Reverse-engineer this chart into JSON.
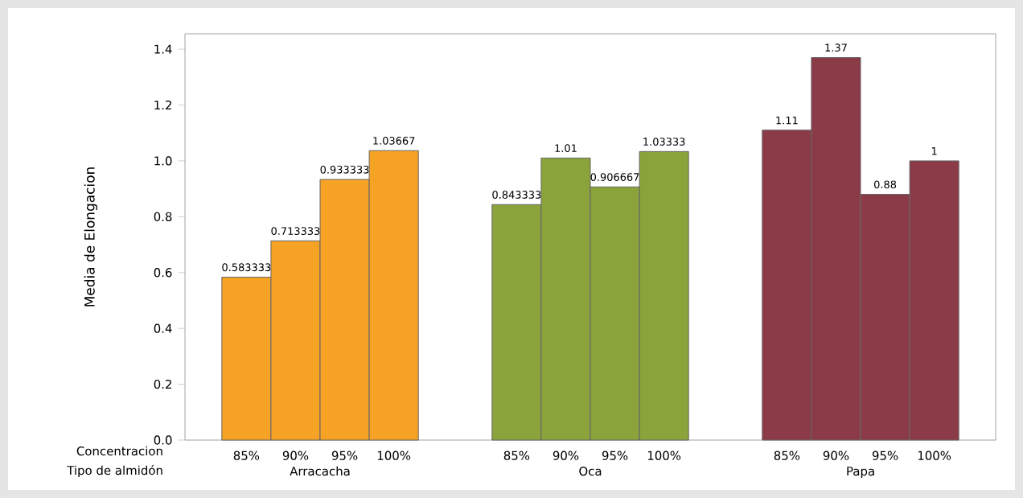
{
  "chart_data": {
    "type": "bar",
    "ylabel": "Media de Elongacion",
    "xlabel": "Concentracion",
    "categories": [
      "85%",
      "90%",
      "95%",
      "100%",
      "85%",
      "90%",
      "95%",
      "100%",
      "85%",
      "90%",
      "95%",
      "100%"
    ],
    "series": [
      {
        "name": "Arracacha",
        "color": "#f6a225",
        "values": [
          0.583333,
          0.713333,
          0.933333,
          1.03667,
          null,
          null,
          null,
          null,
          null,
          null,
          null,
          null
        ]
      },
      {
        "name": "Oca",
        "color": "#8aa33b",
        "values": [
          null,
          null,
          null,
          null,
          0.843333,
          1.01,
          0.906667,
          1.03333,
          null,
          null,
          null,
          null
        ]
      },
      {
        "name": "Papa",
        "color": "#8b3a48",
        "values": [
          null,
          null,
          null,
          null,
          null,
          null,
          null,
          null,
          1.11,
          1.37,
          0.88,
          1
        ]
      }
    ],
    "ylim": [
      0,
      1.455
    ],
    "yticks": [
      {
        "value": 0,
        "label": "0.0"
      },
      {
        "value": 0.2,
        "label": "0.2"
      },
      {
        "value": 0.4,
        "label": "0.4"
      },
      {
        "value": 0.6,
        "label": "0.6"
      },
      {
        "value": 0.8,
        "label": "0.8"
      },
      {
        "value": 1.0,
        "label": "1.0"
      },
      {
        "value": 1.2,
        "label": "1.2"
      },
      {
        "value": 1.4,
        "label": "1.4"
      }
    ],
    "data_labels": true,
    "annotations": [
      "Tipo de almidón"
    ]
  }
}
